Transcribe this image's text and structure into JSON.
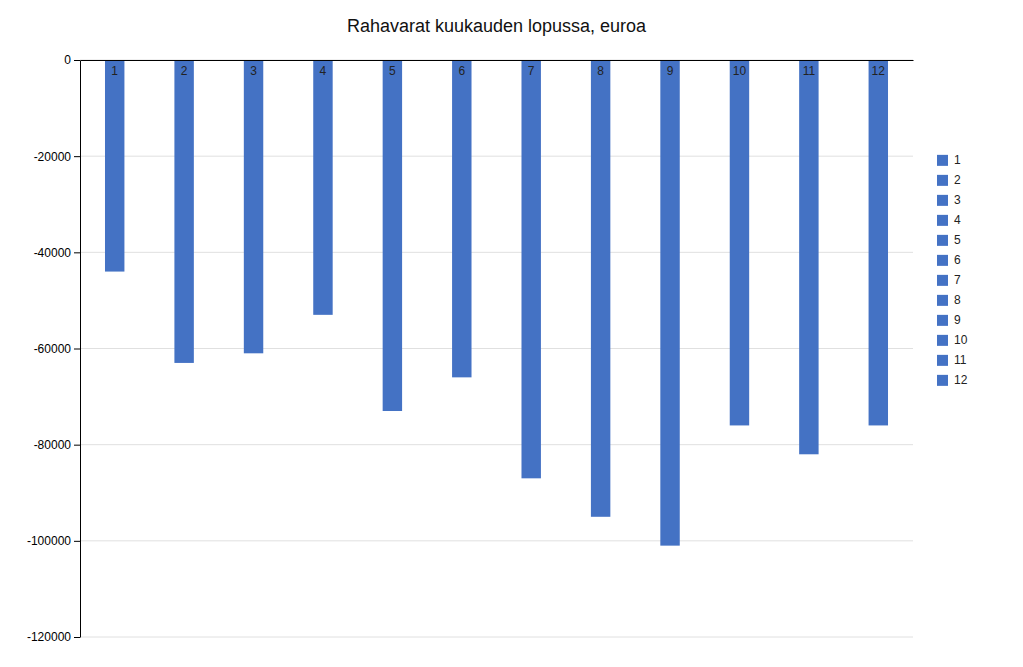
{
  "chart_data": {
    "type": "bar",
    "title": "Rahavarat kuukauden lopussa, euroa",
    "categories": [
      1,
      2,
      3,
      4,
      5,
      6,
      7,
      8,
      9,
      10,
      11,
      12
    ],
    "values": [
      -44000,
      -63000,
      -61000,
      -53000,
      -73000,
      -66000,
      -87000,
      -95000,
      -101000,
      -76000,
      -82000,
      -76000
    ],
    "color": "#4472C4",
    "ylim": [
      -120000,
      0
    ],
    "yticks": [
      0,
      -20000,
      -40000,
      -60000,
      -80000,
      -100000,
      -120000
    ],
    "grid": true,
    "legend": "right"
  }
}
